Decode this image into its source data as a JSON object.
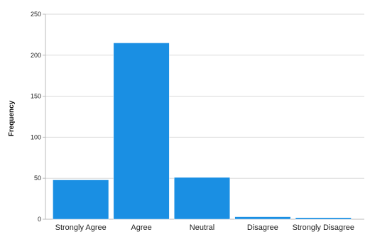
{
  "chart_data": {
    "type": "bar",
    "title": "",
    "xlabel": "",
    "ylabel": "Frequency",
    "categories": [
      "Strongly Agree",
      "Agree",
      "Neutral",
      "Disagree",
      "Strongly Disagree"
    ],
    "values": [
      48,
      215,
      51,
      3,
      2
    ],
    "ylim": [
      0,
      250
    ],
    "yticks": [
      0,
      50,
      100,
      150,
      200,
      250
    ],
    "grid": true,
    "bar_color": "#1a8fe3",
    "gridline_color": "#d9d9d9"
  }
}
